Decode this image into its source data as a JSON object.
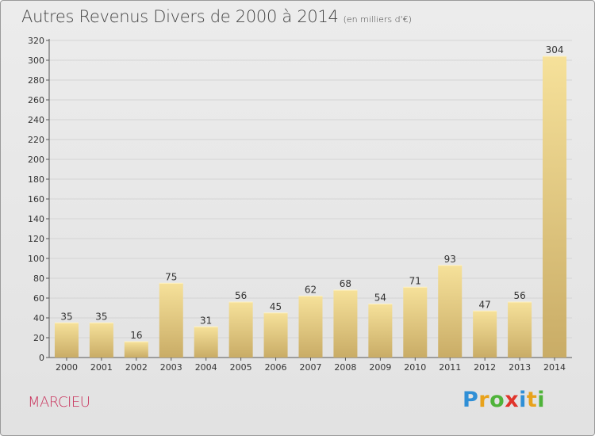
{
  "title": "Autres Revenus Divers de 2000 à 2014",
  "unit": "(en milliers d'€)",
  "town": "MARCIEU",
  "logo": {
    "letters": [
      "P",
      "r",
      "o",
      "x",
      "i",
      "t",
      "i"
    ],
    "colors": [
      "#2f8fd6",
      "#e8a21b",
      "#4fb33a",
      "#e0342b",
      "#2f8fd6",
      "#e8a21b",
      "#4fb33a"
    ]
  },
  "colors": {
    "bar_top": "#f6e19a",
    "bar_bottom": "#c9ac66",
    "axis": "#555555",
    "grid": "#d4d4d4",
    "label": "#333333"
  },
  "chart_data": {
    "type": "bar",
    "categories": [
      "2000",
      "2001",
      "2002",
      "2003",
      "2004",
      "2005",
      "2006",
      "2007",
      "2008",
      "2009",
      "2010",
      "2011",
      "2012",
      "2013",
      "2014"
    ],
    "values": [
      35,
      35,
      16,
      75,
      31,
      56,
      45,
      62,
      68,
      54,
      71,
      93,
      47,
      56,
      304
    ],
    "ylim": [
      0,
      320
    ],
    "yticks": [
      0,
      20,
      40,
      60,
      80,
      100,
      120,
      140,
      160,
      180,
      200,
      220,
      240,
      260,
      280,
      300,
      320
    ],
    "grid": true,
    "legend": "none"
  }
}
